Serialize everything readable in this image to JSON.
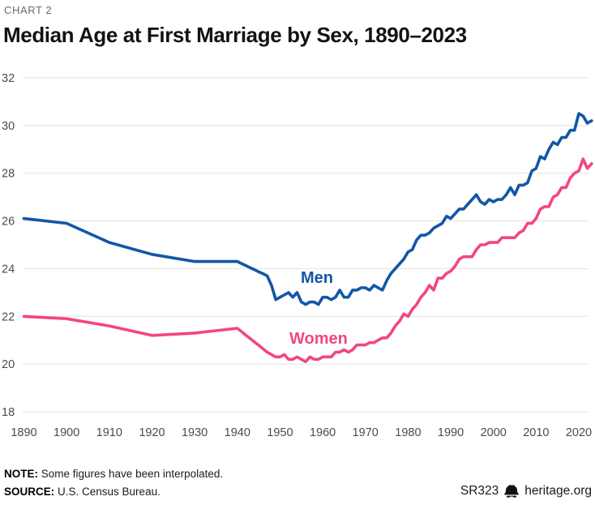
{
  "page": {
    "kicker": "CHART 2",
    "title": "Median Age at First Marriage by Sex, 1890–2023"
  },
  "footer": {
    "note_label": "NOTE:",
    "note_text": " Some figures have been interpolated.",
    "source_label": "SOURCE:",
    "source_text": " U.S. Census Bureau.",
    "report_id": "SR323",
    "site": "heritage.org",
    "logo_icon": "liberty-bell-icon"
  },
  "colors": {
    "men_line": "#1157a6",
    "women_line": "#f2477e",
    "grid": "#e2e2e2",
    "tick_label": "#4b4b4b",
    "title_text": "#131313",
    "kicker_text": "#6a6a6a"
  },
  "chart_data": {
    "type": "line",
    "title": "Median Age at First Marriage by Sex, 1890–2023",
    "xlabel": "",
    "ylabel": "",
    "xlim": [
      1890,
      2023
    ],
    "ylim": [
      18,
      32
    ],
    "x_ticks": [
      1890,
      1900,
      1910,
      1920,
      1930,
      1940,
      1950,
      1960,
      1970,
      1980,
      1990,
      2000,
      2010,
      2020
    ],
    "y_ticks": [
      18,
      20,
      22,
      24,
      26,
      28,
      30,
      32
    ],
    "grid": "horizontal",
    "legend": "inline-labels",
    "x": [
      1890,
      1900,
      1910,
      1920,
      1930,
      1940,
      1941,
      1942,
      1943,
      1944,
      1945,
      1946,
      1947,
      1948,
      1949,
      1950,
      1951,
      1952,
      1953,
      1954,
      1955,
      1956,
      1957,
      1958,
      1959,
      1960,
      1961,
      1962,
      1963,
      1964,
      1965,
      1966,
      1967,
      1968,
      1969,
      1970,
      1971,
      1972,
      1973,
      1974,
      1975,
      1976,
      1977,
      1978,
      1979,
      1980,
      1981,
      1982,
      1983,
      1984,
      1985,
      1986,
      1987,
      1988,
      1989,
      1990,
      1991,
      1992,
      1993,
      1994,
      1995,
      1996,
      1997,
      1998,
      1999,
      2000,
      2001,
      2002,
      2003,
      2004,
      2005,
      2006,
      2007,
      2008,
      2009,
      2010,
      2011,
      2012,
      2013,
      2014,
      2015,
      2016,
      2017,
      2018,
      2019,
      2020,
      2021,
      2022,
      2023
    ],
    "series": [
      {
        "name": "Men",
        "color": "#1157a6",
        "values": [
          26.1,
          25.9,
          25.1,
          24.6,
          24.3,
          24.3,
          24.21,
          24.13,
          24.04,
          23.96,
          23.87,
          23.79,
          23.7,
          23.3,
          22.7,
          22.8,
          22.9,
          23.0,
          22.8,
          23.0,
          22.6,
          22.5,
          22.6,
          22.6,
          22.5,
          22.8,
          22.8,
          22.7,
          22.8,
          23.1,
          22.8,
          22.8,
          23.1,
          23.1,
          23.2,
          23.2,
          23.1,
          23.3,
          23.2,
          23.1,
          23.5,
          23.8,
          24.0,
          24.2,
          24.4,
          24.7,
          24.8,
          25.2,
          25.4,
          25.4,
          25.5,
          25.7,
          25.8,
          25.9,
          26.2,
          26.1,
          26.3,
          26.5,
          26.5,
          26.7,
          26.9,
          27.1,
          26.8,
          26.7,
          26.9,
          26.8,
          26.9,
          26.9,
          27.1,
          27.4,
          27.1,
          27.5,
          27.5,
          27.6,
          28.1,
          28.2,
          28.7,
          28.6,
          29.0,
          29.3,
          29.2,
          29.5,
          29.5,
          29.8,
          29.8,
          30.5,
          30.4,
          30.1,
          30.2
        ]
      },
      {
        "name": "Women",
        "color": "#f2477e",
        "values": [
          22.0,
          21.9,
          21.6,
          21.2,
          21.3,
          21.5,
          21.36,
          21.21,
          21.07,
          20.93,
          20.79,
          20.64,
          20.5,
          20.4,
          20.3,
          20.3,
          20.4,
          20.2,
          20.2,
          20.3,
          20.2,
          20.1,
          20.3,
          20.2,
          20.2,
          20.3,
          20.3,
          20.3,
          20.5,
          20.5,
          20.6,
          20.5,
          20.6,
          20.8,
          20.8,
          20.8,
          20.9,
          20.9,
          21.0,
          21.1,
          21.1,
          21.3,
          21.6,
          21.8,
          22.1,
          22.0,
          22.3,
          22.5,
          22.8,
          23.0,
          23.3,
          23.1,
          23.6,
          23.6,
          23.8,
          23.9,
          24.1,
          24.4,
          24.5,
          24.5,
          24.5,
          24.8,
          25.0,
          25.0,
          25.1,
          25.1,
          25.1,
          25.3,
          25.3,
          25.3,
          25.3,
          25.5,
          25.6,
          25.9,
          25.9,
          26.1,
          26.5,
          26.6,
          26.6,
          27.0,
          27.1,
          27.4,
          27.4,
          27.8,
          28.0,
          28.1,
          28.6,
          28.2,
          28.4
        ]
      }
    ]
  }
}
